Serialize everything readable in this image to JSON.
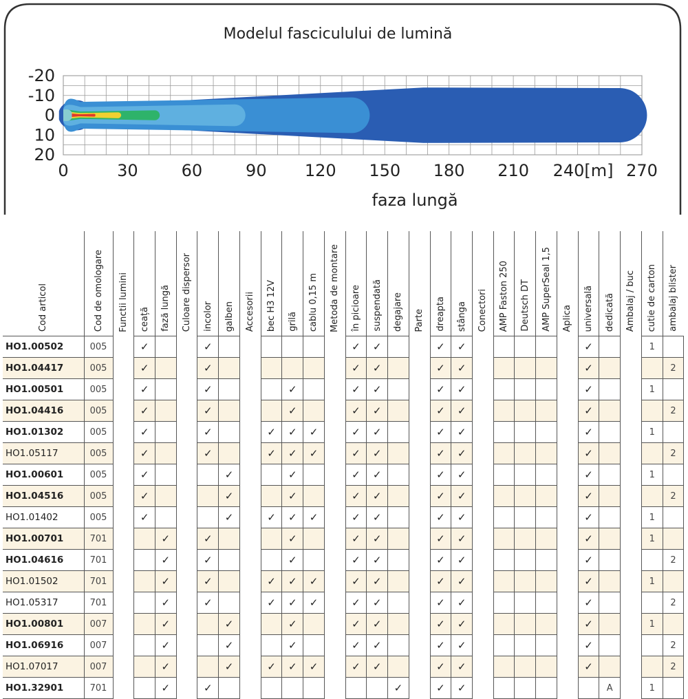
{
  "beam_chart": {
    "title": "Modelul fasciculului de lumină",
    "xlabel": "faza lungă",
    "x_ticks": [
      "0",
      "30",
      "60",
      "90",
      "120",
      "150",
      "180",
      "210",
      "240[m]",
      "270"
    ],
    "y_ticks": [
      "-20",
      "-10",
      "0",
      "10",
      "20"
    ],
    "colors": {
      "outer": "#2a5db3",
      "mid": "#3a8fd4",
      "light": "#5fb0e0",
      "pale": "#88ccd0",
      "green": "#2eb36a",
      "yellow": "#f0d030",
      "red": "#e03a2a"
    }
  },
  "chart_data": {
    "type": "area",
    "title": "Modelul fasciculului de lumină",
    "xlabel": "faza lungă",
    "ylabel": "",
    "xlim": [
      0,
      270
    ],
    "ylim": [
      -20,
      20
    ],
    "grid": true,
    "zones": [
      {
        "color": "#2a5db3",
        "x_end": 272,
        "half_width_max": 14
      },
      {
        "color": "#3a8fd4",
        "x_end": 143,
        "half_width_max": 9
      },
      {
        "color": "#5fb0e0",
        "x_end": 85,
        "half_width_max": 5.5
      },
      {
        "color": "#2eb36a",
        "x_end": 45,
        "half_width_max": 2.5
      },
      {
        "color": "#f0d030",
        "x_end": 27,
        "half_width_max": 1.5
      },
      {
        "color": "#e03a2a",
        "x_end": 15,
        "half_width_max": 0.7
      }
    ]
  },
  "table": {
    "columns": [
      {
        "label": "Cod articol",
        "type": "code"
      },
      {
        "label": "Cod de omologare",
        "type": "omol"
      },
      {
        "label": "Functii lumini",
        "type": "group"
      },
      {
        "label": "ceață",
        "type": "cell"
      },
      {
        "label": "fază lungă",
        "type": "cell"
      },
      {
        "label": "Culoare dispersor",
        "type": "group"
      },
      {
        "label": "incolor",
        "type": "cell"
      },
      {
        "label": "galben",
        "type": "cell"
      },
      {
        "label": "Accesorii",
        "type": "group"
      },
      {
        "label": "bec H3 12V",
        "type": "cell"
      },
      {
        "label": "grilă",
        "type": "cell"
      },
      {
        "label": "cablu 0,15 m",
        "type": "cell"
      },
      {
        "label": "Metoda de montare",
        "type": "group"
      },
      {
        "label": "în picioare",
        "type": "cell"
      },
      {
        "label": "suspendată",
        "type": "cell"
      },
      {
        "label": "degajare",
        "type": "cell"
      },
      {
        "label": "Parte",
        "type": "group"
      },
      {
        "label": "dreapta",
        "type": "cell"
      },
      {
        "label": "stânga",
        "type": "cell"
      },
      {
        "label": "Conectori",
        "type": "group"
      },
      {
        "label": "AMP Faston 250",
        "type": "cell"
      },
      {
        "label": "Deutsch DT",
        "type": "cell"
      },
      {
        "label": "AMP SuperSeal 1,5",
        "type": "cell"
      },
      {
        "label": "Aplica",
        "type": "group"
      },
      {
        "label": "universală",
        "type": "cell"
      },
      {
        "label": "dedicată",
        "type": "cell"
      },
      {
        "label": "Ambalaj / buc",
        "type": "group"
      },
      {
        "label": "cutie de carton",
        "type": "cell"
      },
      {
        "label": "ambalaj blister",
        "type": "cell"
      }
    ],
    "check_mark": "✓",
    "rows": [
      {
        "code": "HO1.00502",
        "bold": true,
        "shade": false,
        "omol": "005",
        "cells": [
          "✓",
          "",
          "✓",
          "",
          "",
          "",
          "",
          "✓",
          "✓",
          "",
          "✓",
          "✓",
          "",
          "",
          "",
          "✓",
          "",
          "1",
          ""
        ]
      },
      {
        "code": "HO1.04417",
        "bold": true,
        "shade": true,
        "omol": "005",
        "cells": [
          "✓",
          "",
          "✓",
          "",
          "",
          "",
          "",
          "✓",
          "✓",
          "",
          "✓",
          "✓",
          "",
          "",
          "",
          "✓",
          "",
          "",
          "2"
        ]
      },
      {
        "code": "HO1.00501",
        "bold": true,
        "shade": false,
        "omol": "005",
        "cells": [
          "✓",
          "",
          "✓",
          "",
          "",
          "✓",
          "",
          "✓",
          "✓",
          "",
          "✓",
          "✓",
          "",
          "",
          "",
          "✓",
          "",
          "1",
          ""
        ]
      },
      {
        "code": "HO1.04416",
        "bold": true,
        "shade": true,
        "omol": "005",
        "cells": [
          "✓",
          "",
          "✓",
          "",
          "",
          "✓",
          "",
          "✓",
          "✓",
          "",
          "✓",
          "✓",
          "",
          "",
          "",
          "✓",
          "",
          "",
          "2"
        ]
      },
      {
        "code": "HO1.01302",
        "bold": true,
        "shade": false,
        "omol": "005",
        "cells": [
          "✓",
          "",
          "✓",
          "",
          "✓",
          "✓",
          "✓",
          "✓",
          "✓",
          "",
          "✓",
          "✓",
          "",
          "",
          "",
          "✓",
          "",
          "1",
          ""
        ]
      },
      {
        "code": "HO1.05117",
        "bold": false,
        "shade": true,
        "omol": "005",
        "cells": [
          "✓",
          "",
          "✓",
          "",
          "✓",
          "✓",
          "✓",
          "✓",
          "✓",
          "",
          "✓",
          "✓",
          "",
          "",
          "",
          "✓",
          "",
          "",
          "2"
        ]
      },
      {
        "code": "HO1.00601",
        "bold": true,
        "shade": false,
        "omol": "005",
        "cells": [
          "✓",
          "",
          "",
          "✓",
          "",
          "✓",
          "",
          "✓",
          "✓",
          "",
          "✓",
          "✓",
          "",
          "",
          "",
          "✓",
          "",
          "1",
          ""
        ]
      },
      {
        "code": "HO1.04516",
        "bold": true,
        "shade": true,
        "omol": "005",
        "cells": [
          "✓",
          "",
          "",
          "✓",
          "",
          "✓",
          "",
          "✓",
          "✓",
          "",
          "✓",
          "✓",
          "",
          "",
          "",
          "✓",
          "",
          "",
          "2"
        ]
      },
      {
        "code": "HO1.01402",
        "bold": false,
        "shade": false,
        "omol": "005",
        "cells": [
          "✓",
          "",
          "",
          "✓",
          "✓",
          "✓",
          "✓",
          "✓",
          "✓",
          "",
          "✓",
          "✓",
          "",
          "",
          "",
          "✓",
          "",
          "1",
          ""
        ]
      },
      {
        "code": "HO1.00701",
        "bold": true,
        "shade": true,
        "omol": "701",
        "cells": [
          "",
          "✓",
          "✓",
          "",
          "",
          "✓",
          "",
          "✓",
          "✓",
          "",
          "✓",
          "✓",
          "",
          "",
          "",
          "✓",
          "",
          "1",
          ""
        ]
      },
      {
        "code": "HO1.04616",
        "bold": true,
        "shade": false,
        "omol": "701",
        "cells": [
          "",
          "✓",
          "✓",
          "",
          "",
          "✓",
          "",
          "✓",
          "✓",
          "",
          "✓",
          "✓",
          "",
          "",
          "",
          "✓",
          "",
          "",
          "2"
        ]
      },
      {
        "code": "HO1.01502",
        "bold": false,
        "shade": true,
        "omol": "701",
        "cells": [
          "",
          "✓",
          "✓",
          "",
          "✓",
          "✓",
          "✓",
          "✓",
          "✓",
          "",
          "✓",
          "✓",
          "",
          "",
          "",
          "✓",
          "",
          "1",
          ""
        ]
      },
      {
        "code": "HO1.05317",
        "bold": false,
        "shade": false,
        "omol": "701",
        "cells": [
          "",
          "✓",
          "✓",
          "",
          "✓",
          "✓",
          "✓",
          "✓",
          "✓",
          "",
          "✓",
          "✓",
          "",
          "",
          "",
          "✓",
          "",
          "",
          "2"
        ]
      },
      {
        "code": "HO1.00801",
        "bold": true,
        "shade": true,
        "omol": "007",
        "cells": [
          "",
          "✓",
          "",
          "✓",
          "",
          "✓",
          "",
          "✓",
          "✓",
          "",
          "✓",
          "✓",
          "",
          "",
          "",
          "✓",
          "",
          "1",
          ""
        ]
      },
      {
        "code": "HO1.06916",
        "bold": true,
        "shade": false,
        "omol": "007",
        "cells": [
          "",
          "✓",
          "",
          "✓",
          "",
          "✓",
          "",
          "✓",
          "✓",
          "",
          "✓",
          "✓",
          "",
          "",
          "",
          "✓",
          "",
          "",
          "2"
        ]
      },
      {
        "code": "HO1.07017",
        "bold": false,
        "shade": true,
        "omol": "007",
        "cells": [
          "",
          "✓",
          "",
          "✓",
          "✓",
          "✓",
          "✓",
          "✓",
          "✓",
          "",
          "✓",
          "✓",
          "",
          "",
          "",
          "✓",
          "",
          "",
          "2"
        ]
      },
      {
        "code": "HO1.32901",
        "bold": true,
        "shade": false,
        "omol": "701",
        "cells": [
          "",
          "✓",
          "✓",
          "",
          "",
          "",
          "",
          "",
          "",
          "✓",
          "✓",
          "✓",
          "",
          "",
          "",
          "",
          "A",
          "1",
          ""
        ]
      }
    ]
  }
}
